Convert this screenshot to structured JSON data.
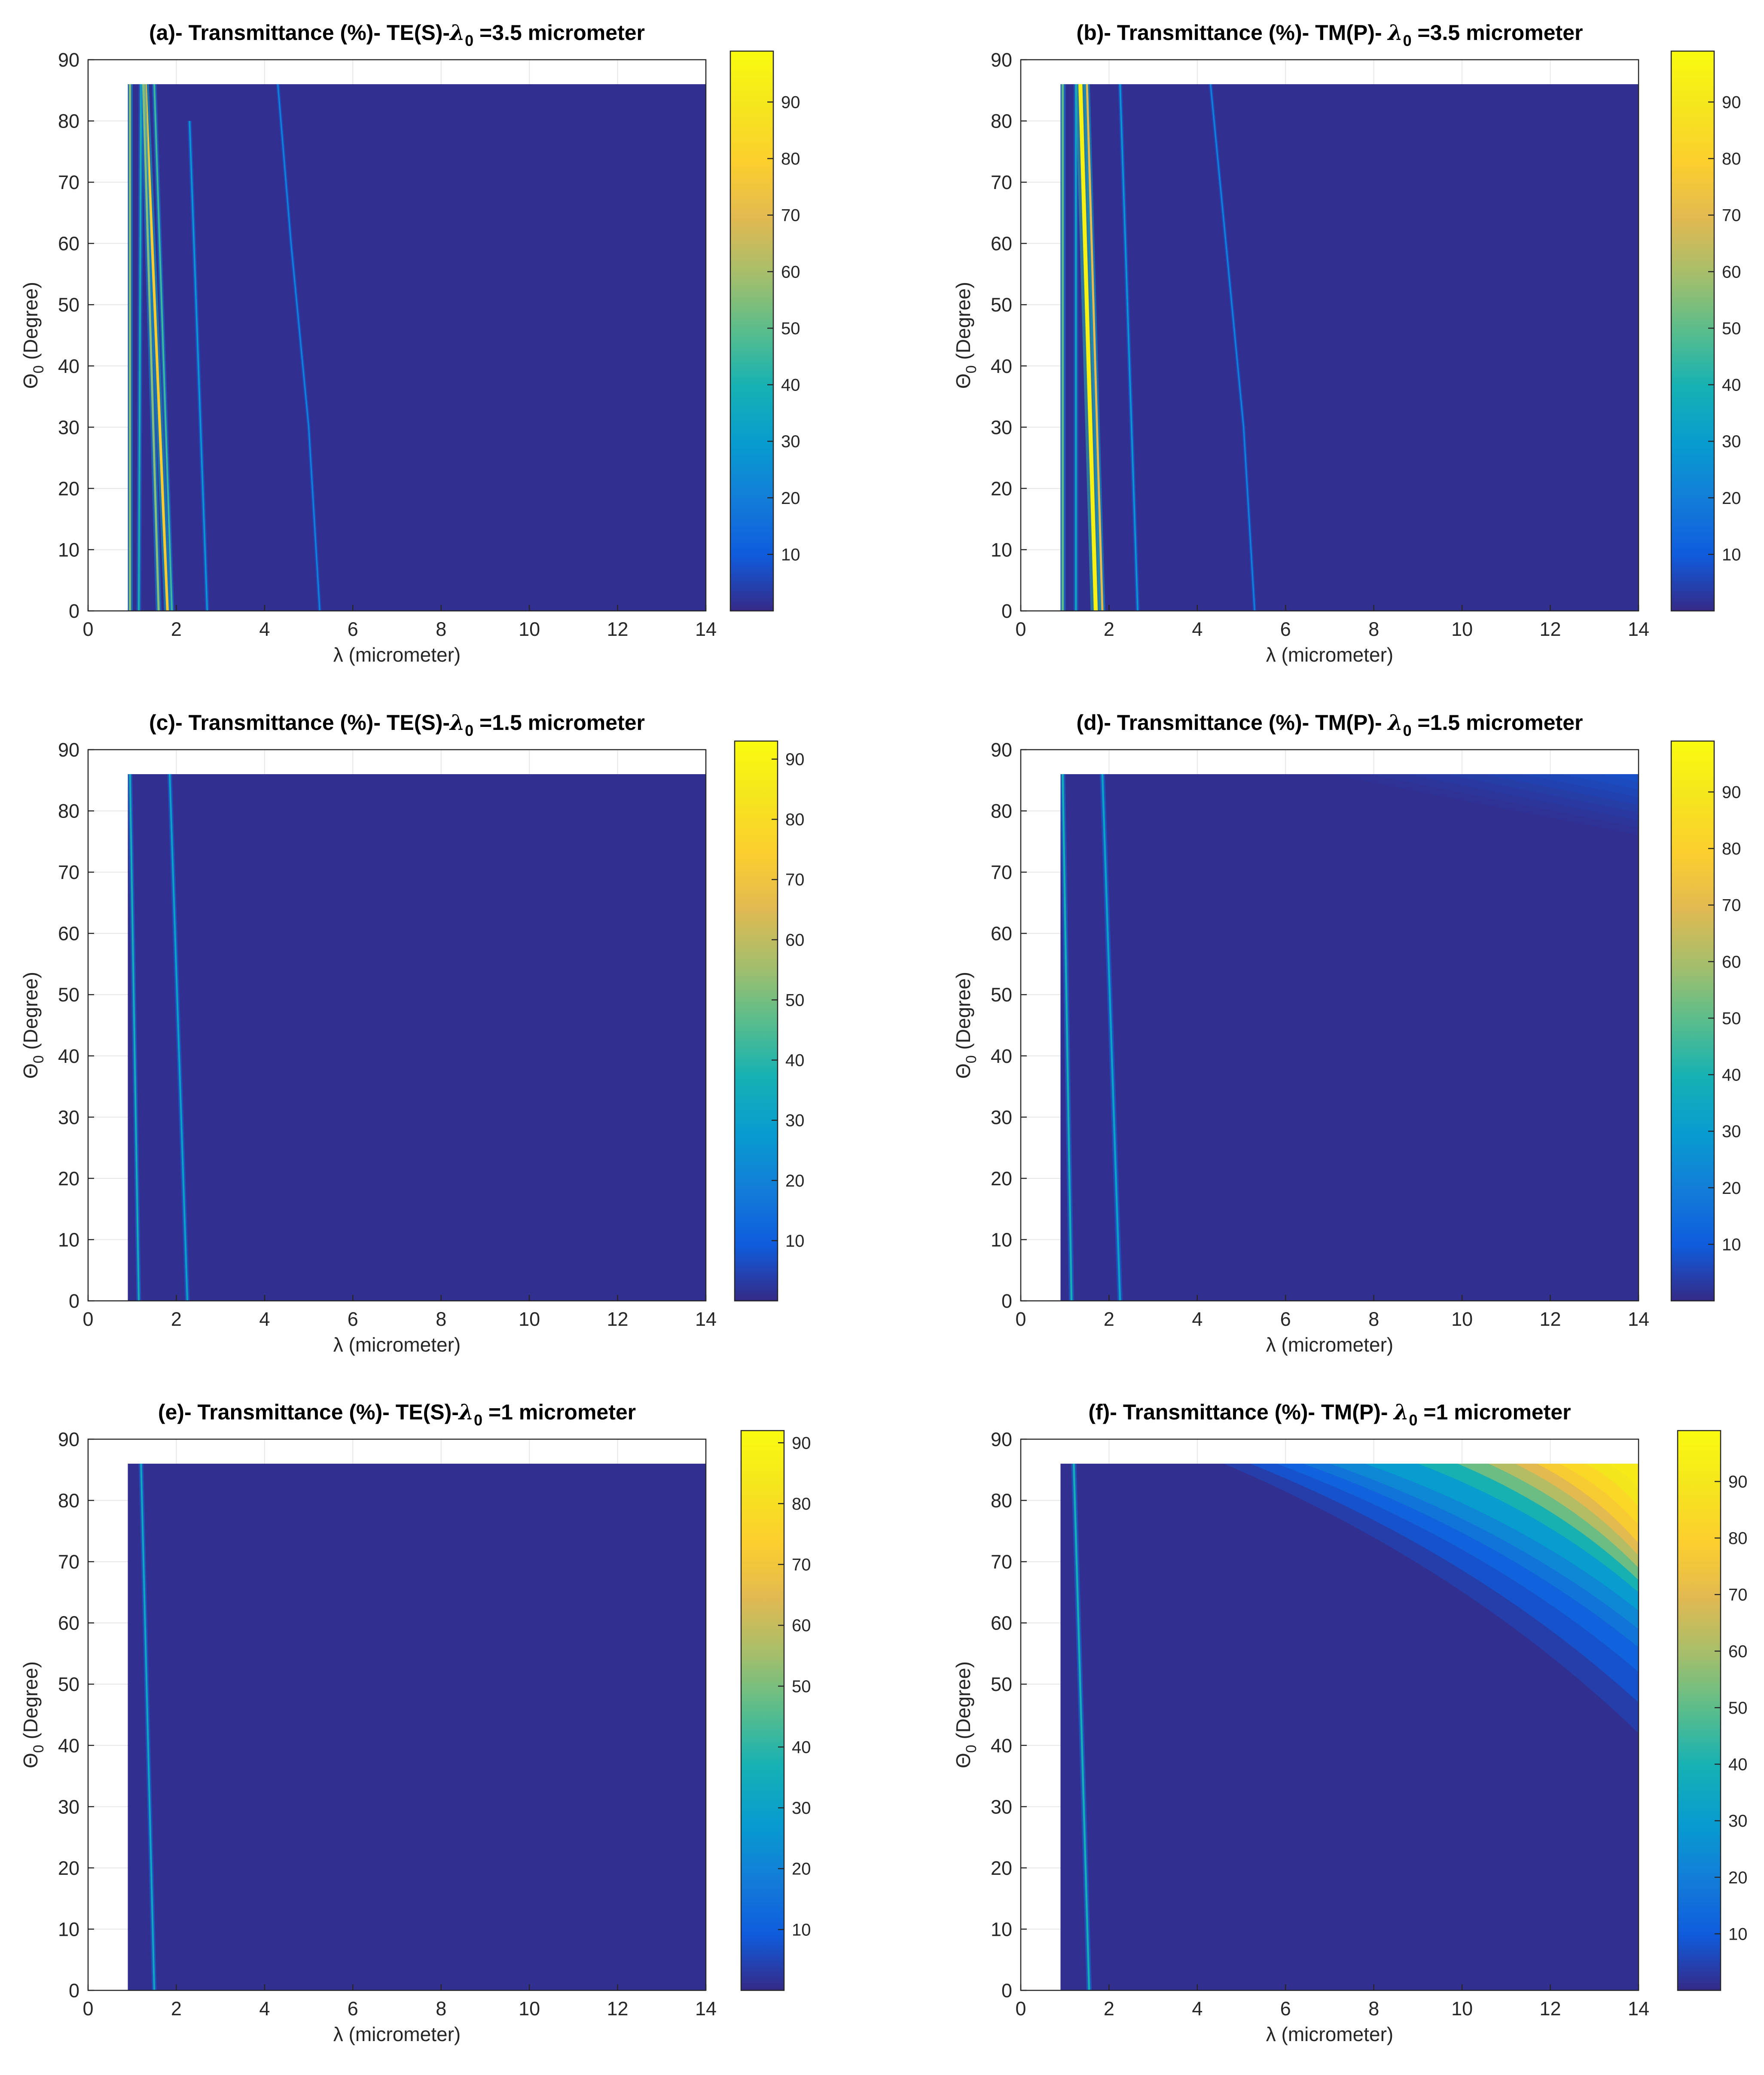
{
  "figure": {
    "layout": "3x2 grid of heatmaps",
    "colormap": "parula"
  },
  "chart_data": [
    {
      "type": "heatmap",
      "panel": "a",
      "title": "(a)- Transmittance (%)- TE(S)-λ₀ =3.5 micrometer",
      "title_parts": {
        "prefix": "(a)- Transmittance (%)- TE(S)-",
        "sym": "λ",
        "sub": "0",
        "suffix": " =3.5 micrometer"
      },
      "xlabel": "λ (micrometer)",
      "ylabel": {
        "sym": "Θ",
        "sub": "0",
        "rest": " (Degree)"
      },
      "xlim": [
        0,
        14
      ],
      "ylim": [
        0,
        90
      ],
      "xticks": [
        0,
        2,
        4,
        6,
        8,
        10,
        12,
        14
      ],
      "yticks": [
        0,
        10,
        20,
        30,
        40,
        50,
        60,
        70,
        80,
        90
      ],
      "colorbar_ticks": [
        10,
        20,
        30,
        40,
        50,
        60,
        70,
        80,
        90
      ],
      "clim": [
        0,
        99
      ],
      "data_region": {
        "x": [
          0.9,
          14
        ],
        "y": [
          0,
          86
        ],
        "background_value": 1
      },
      "features": [
        {
          "kind": "line",
          "points": [
            [
              0.95,
              0
            ],
            [
              0.95,
              86
            ]
          ],
          "value": 55,
          "width": 0.05
        },
        {
          "kind": "line",
          "points": [
            [
              1.15,
              0
            ],
            [
              1.2,
              86
            ]
          ],
          "value": 40,
          "width": 0.04
        },
        {
          "kind": "line",
          "points": [
            [
              1.8,
              0
            ],
            [
              1.3,
              86
            ]
          ],
          "value": 78,
          "width": 0.06
        },
        {
          "kind": "line",
          "points": [
            [
              1.6,
              0
            ],
            [
              1.25,
              86
            ]
          ],
          "value": 55,
          "width": 0.05
        },
        {
          "kind": "line",
          "points": [
            [
              1.9,
              0
            ],
            [
              1.5,
              86
            ]
          ],
          "value": 45,
          "width": 0.04
        },
        {
          "kind": "line",
          "points": [
            [
              2.7,
              0
            ],
            [
              2.3,
              80
            ]
          ],
          "value": 28,
          "width": 0.035
        },
        {
          "kind": "line",
          "points": [
            [
              5.25,
              0
            ],
            [
              5.0,
              30
            ],
            [
              4.6,
              60
            ],
            [
              4.3,
              86
            ]
          ],
          "value": 22,
          "width": 0.03
        }
      ]
    },
    {
      "type": "heatmap",
      "panel": "b",
      "title": "(b)- Transmittance (%)- TM(P)- λ₀ =3.5 micrometer",
      "title_parts": {
        "prefix": "(b)- Transmittance (%)- TM(P)- ",
        "sym": "λ",
        "sub": "0",
        "suffix": " =3.5 micrometer"
      },
      "xlabel": "λ (micrometer)",
      "ylabel": {
        "sym": "Θ",
        "sub": "0",
        "rest": " (Degree)"
      },
      "xlim": [
        0,
        14
      ],
      "ylim": [
        0,
        90
      ],
      "xticks": [
        0,
        2,
        4,
        6,
        8,
        10,
        12,
        14
      ],
      "yticks": [
        0,
        10,
        20,
        30,
        40,
        50,
        60,
        70,
        80,
        90
      ],
      "colorbar_ticks": [
        10,
        20,
        30,
        40,
        50,
        60,
        70,
        80,
        90
      ],
      "clim": [
        0,
        99
      ],
      "data_region": {
        "x": [
          0.9,
          14
        ],
        "y": [
          0,
          86
        ],
        "background_value": 1
      },
      "features": [
        {
          "kind": "line",
          "points": [
            [
              0.95,
              0
            ],
            [
              0.95,
              86
            ]
          ],
          "value": 50,
          "width": 0.05
        },
        {
          "kind": "line",
          "points": [
            [
              1.25,
              0
            ],
            [
              1.25,
              86
            ]
          ],
          "value": 35,
          "width": 0.04
        },
        {
          "kind": "line",
          "points": [
            [
              1.7,
              0
            ],
            [
              1.35,
              86
            ]
          ],
          "value": 95,
          "width": 0.09
        },
        {
          "kind": "line",
          "points": [
            [
              1.85,
              0
            ],
            [
              1.5,
              86
            ]
          ],
          "value": 70,
          "width": 0.05
        },
        {
          "kind": "line",
          "points": [
            [
              2.65,
              0
            ],
            [
              2.25,
              86
            ]
          ],
          "value": 28,
          "width": 0.035
        },
        {
          "kind": "line",
          "points": [
            [
              5.3,
              0
            ],
            [
              5.05,
              30
            ],
            [
              4.65,
              60
            ],
            [
              4.3,
              86
            ]
          ],
          "value": 22,
          "width": 0.03
        }
      ]
    },
    {
      "type": "heatmap",
      "panel": "c",
      "title": "(c)- Transmittance (%)- TE(S)-λ₀ =1.5 micrometer",
      "title_parts": {
        "prefix": "(c)- Transmittance (%)- TE(S)-",
        "sym": "λ",
        "sub": "0",
        "suffix": " =1.5 micrometer"
      },
      "xlabel": "λ (micrometer)",
      "ylabel": {
        "sym": "Θ",
        "sub": "0",
        "rest": " (Degree)"
      },
      "xlim": [
        0,
        14
      ],
      "ylim": [
        0,
        90
      ],
      "xticks": [
        0,
        2,
        4,
        6,
        8,
        10,
        12,
        14
      ],
      "yticks": [
        0,
        10,
        20,
        30,
        40,
        50,
        60,
        70,
        80,
        90
      ],
      "colorbar_ticks": [
        10,
        20,
        30,
        40,
        50,
        60,
        70,
        80,
        90
      ],
      "clim": [
        0,
        93
      ],
      "data_region": {
        "x": [
          0.9,
          14
        ],
        "y": [
          0,
          86
        ],
        "background_value": 1
      },
      "features": [
        {
          "kind": "line",
          "points": [
            [
              1.15,
              0
            ],
            [
              0.95,
              86
            ]
          ],
          "value": 35,
          "width": 0.04
        },
        {
          "kind": "line",
          "points": [
            [
              2.25,
              0
            ],
            [
              1.85,
              86
            ]
          ],
          "value": 30,
          "width": 0.04
        }
      ]
    },
    {
      "type": "heatmap",
      "panel": "d",
      "title": "(d)- Transmittance (%)- TM(P)- λ₀ =1.5 micrometer",
      "title_parts": {
        "prefix": "(d)- Transmittance (%)- TM(P)- ",
        "sym": "λ",
        "sub": "0",
        "suffix": " =1.5 micrometer"
      },
      "xlabel": "λ (micrometer)",
      "ylabel": {
        "sym": "Θ",
        "sub": "0",
        "rest": " (Degree)"
      },
      "xlim": [
        0,
        14
      ],
      "ylim": [
        0,
        90
      ],
      "xticks": [
        0,
        2,
        4,
        6,
        8,
        10,
        12,
        14
      ],
      "yticks": [
        0,
        10,
        20,
        30,
        40,
        50,
        60,
        70,
        80,
        90
      ],
      "colorbar_ticks": [
        10,
        20,
        30,
        40,
        50,
        60,
        70,
        80,
        90
      ],
      "clim": [
        0,
        99
      ],
      "data_region": {
        "x": [
          0.9,
          14
        ],
        "y": [
          0,
          86
        ],
        "background_value": 1
      },
      "features": [
        {
          "kind": "line",
          "points": [
            [
              1.15,
              0
            ],
            [
              0.95,
              86
            ]
          ],
          "value": 38,
          "width": 0.045
        },
        {
          "kind": "line",
          "points": [
            [
              2.25,
              0
            ],
            [
              1.85,
              86
            ]
          ],
          "value": 32,
          "width": 0.045
        },
        {
          "kind": "gradient",
          "corner": "top-right",
          "start_x": 7,
          "start_y": 76,
          "max_value": 8
        }
      ]
    },
    {
      "type": "heatmap",
      "panel": "e",
      "title": "(e)- Transmittance (%)- TE(S)-λ₀ =1 micrometer",
      "title_parts": {
        "prefix": "(e)- Transmittance (%)- TE(S)-",
        "sym": "λ",
        "sub": "0",
        "suffix": " =1 micrometer"
      },
      "xlabel": "λ (micrometer)",
      "ylabel": {
        "sym": "Θ",
        "sub": "0",
        "rest": " (Degree)"
      },
      "xlim": [
        0,
        14
      ],
      "ylim": [
        0,
        90
      ],
      "xticks": [
        0,
        2,
        4,
        6,
        8,
        10,
        12,
        14
      ],
      "yticks": [
        0,
        10,
        20,
        30,
        40,
        50,
        60,
        70,
        80,
        90
      ],
      "colorbar_ticks": [
        10,
        20,
        30,
        40,
        50,
        60,
        70,
        80,
        90
      ],
      "clim": [
        0,
        92
      ],
      "data_region": {
        "x": [
          0.9,
          14
        ],
        "y": [
          0,
          86
        ],
        "background_value": 1
      },
      "features": [
        {
          "kind": "line",
          "points": [
            [
              1.5,
              0
            ],
            [
              1.2,
              86
            ]
          ],
          "value": 32,
          "width": 0.04
        }
      ]
    },
    {
      "type": "heatmap",
      "panel": "f",
      "title": "(f)- Transmittance (%)- TM(P)- λ₀ =1 micrometer",
      "title_parts": {
        "prefix": "(f)- Transmittance (%)- TM(P)- ",
        "sym": "λ",
        "sub": "0",
        "suffix": " =1 micrometer"
      },
      "xlabel": "λ (micrometer)",
      "ylabel": {
        "sym": "Θ",
        "sub": "0",
        "rest": " (Degree)"
      },
      "xlim": [
        0,
        14
      ],
      "ylim": [
        0,
        90
      ],
      "xticks": [
        0,
        2,
        4,
        6,
        8,
        10,
        12,
        14
      ],
      "yticks": [
        0,
        10,
        20,
        30,
        40,
        50,
        60,
        70,
        80,
        90
      ],
      "colorbar_ticks": [
        10,
        20,
        30,
        40,
        50,
        60,
        70,
        80,
        90
      ],
      "clim": [
        0,
        99
      ],
      "data_region": {
        "x": [
          0.9,
          14
        ],
        "y": [
          0,
          86
        ],
        "background_value": 1
      },
      "features": [
        {
          "kind": "line",
          "points": [
            [
              1.55,
              0
            ],
            [
              1.2,
              86
            ]
          ],
          "value": 38,
          "width": 0.045
        },
        {
          "kind": "field",
          "note": "transmittance rises with wavelength and angle; high (~90) at top-right corner, pattern starts near lambda 5 at 86 degrees and near 14 micrometer at 45 degrees"
        }
      ]
    }
  ]
}
